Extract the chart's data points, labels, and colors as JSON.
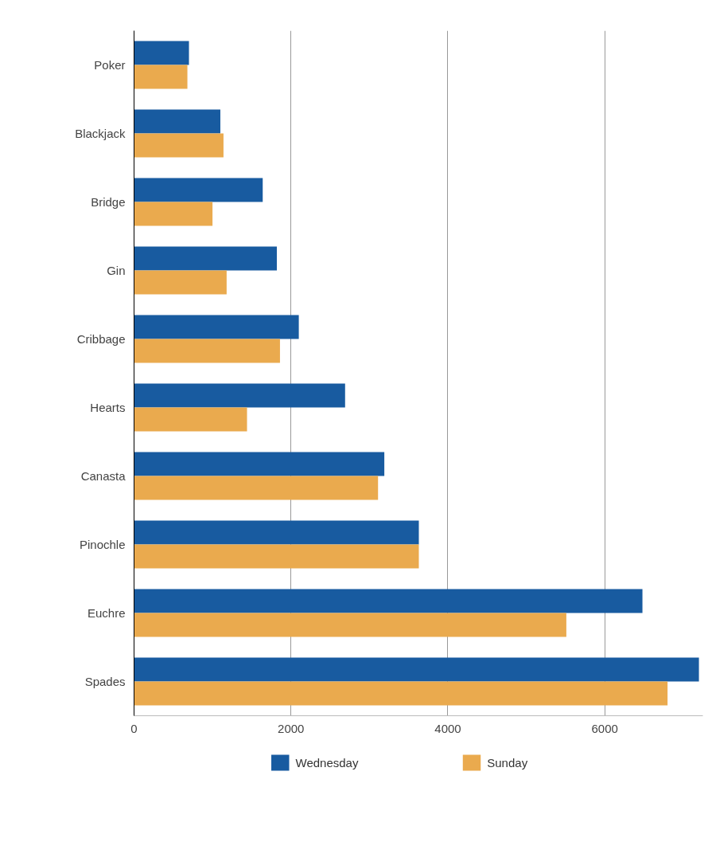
{
  "chart_data": {
    "type": "bar",
    "orientation": "horizontal",
    "categories": [
      "Poker",
      "Blackjack",
      "Bridge",
      "Gin",
      "Cribbage",
      "Hearts",
      "Canasta",
      "Pinochle",
      "Euchre",
      "Spades"
    ],
    "series": [
      {
        "name": "Wednesday",
        "color": "#185ba0",
        "values": [
          700,
          1100,
          1640,
          1820,
          2100,
          2690,
          3190,
          3630,
          6480,
          7200
        ]
      },
      {
        "name": "Sunday",
        "color": "#eaaa4e",
        "values": [
          680,
          1140,
          1000,
          1180,
          1860,
          1440,
          3110,
          3630,
          5510,
          6800
        ]
      }
    ],
    "xlim": [
      0,
      7250
    ],
    "xticks": [
      0,
      2000,
      4000,
      6000
    ],
    "grid": "x",
    "legend": "bottom"
  }
}
